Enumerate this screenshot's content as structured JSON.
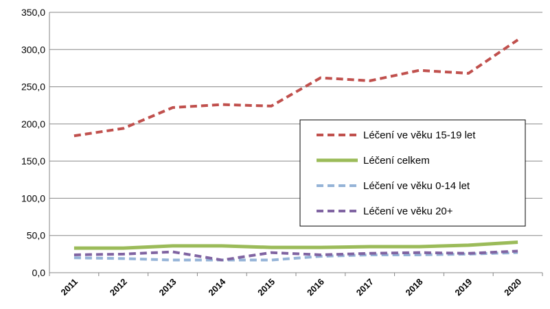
{
  "chart_data": {
    "type": "line",
    "categories": [
      "2011",
      "2012",
      "2013",
      "2014",
      "2015",
      "2016",
      "2017",
      "2018",
      "2019",
      "2020"
    ],
    "series": [
      {
        "name": "Léčení ve věku 15-19 let",
        "color": "#c0504d",
        "dash": true,
        "values": [
          184,
          194,
          222,
          226,
          224,
          262,
          258,
          272,
          268,
          313
        ]
      },
      {
        "name": "Léčení celkem",
        "color": "#9bbb59",
        "dash": false,
        "values": [
          33,
          33,
          36,
          36,
          34,
          34,
          35,
          35,
          37,
          41
        ]
      },
      {
        "name": "Léčení ve věku 0-14 let",
        "color": "#95b3d7",
        "dash": true,
        "values": [
          20,
          19,
          17,
          17,
          17,
          22,
          24,
          24,
          25,
          27
        ]
      },
      {
        "name": "Léčení ve věku 20+",
        "color": "#8064a2",
        "dash": true,
        "values": [
          24,
          25,
          28,
          17,
          27,
          24,
          26,
          27,
          26,
          29
        ]
      }
    ],
    "ylim": [
      0,
      350
    ],
    "yticks": [
      {
        "value": 0,
        "label": "0,0"
      },
      {
        "value": 50,
        "label": "50,0"
      },
      {
        "value": 100,
        "label": "100,0"
      },
      {
        "value": 150,
        "label": "150,0"
      },
      {
        "value": 200,
        "label": "200,0"
      },
      {
        "value": 250,
        "label": "250,0"
      },
      {
        "value": 300,
        "label": "300,0"
      },
      {
        "value": 350,
        "label": "350,0"
      }
    ],
    "grid": true
  }
}
